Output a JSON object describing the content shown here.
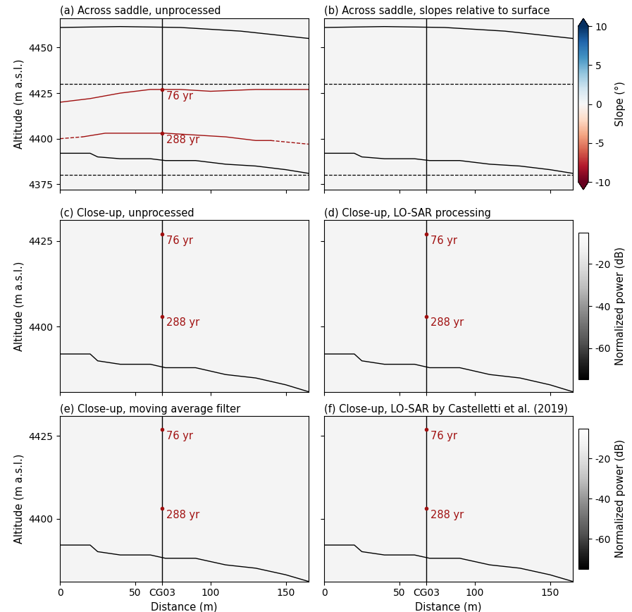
{
  "chart_data": [
    {
      "type": "radargram",
      "title": "(a) Across saddle, unprocessed",
      "y_label": "Altitude (m a.s.l.)",
      "tick_labels": "y",
      "xlim": [
        0,
        165
      ],
      "ylim": [
        4372,
        4466
      ],
      "xticks": [
        0,
        50,
        {
          "value": 68,
          "label": "CG03"
        },
        100,
        150
      ],
      "yticks": [
        4375,
        4400,
        4425,
        4450
      ],
      "vline": 68,
      "hlines": [
        4430,
        4380
      ],
      "lines": [
        {
          "x": [
            0,
            40,
            80,
            120,
            165
          ],
          "y": [
            4461,
            4461.5,
            4461,
            4459,
            4455
          ],
          "color": "#000000",
          "line_style": "solid"
        },
        {
          "x": [
            0,
            20,
            25,
            40,
            60,
            70,
            90,
            110,
            130,
            150,
            165
          ],
          "y": [
            4392,
            4392,
            4390,
            4389,
            4389,
            4388,
            4388,
            4386,
            4385,
            4383,
            4381
          ],
          "color": "#000000",
          "line_style": "solid"
        },
        {
          "x": [
            0,
            20,
            40,
            60,
            80,
            100,
            130,
            165
          ],
          "y": [
            4420,
            4422,
            4425,
            4427,
            4427,
            4426,
            4427,
            4427
          ],
          "color": "#a01010",
          "line_style": "solid"
        },
        {
          "x": [
            0,
            15
          ],
          "y": [
            4400,
            4401
          ],
          "color": "#a01010",
          "line_style": "dashed"
        },
        {
          "x": [
            15,
            30,
            50,
            70,
            90,
            110,
            130,
            140
          ],
          "y": [
            4401,
            4403,
            4403,
            4403,
            4402,
            4401,
            4399,
            4399
          ],
          "color": "#a01010",
          "line_style": "solid"
        },
        {
          "x": [
            140,
            165
          ],
          "y": [
            4399,
            4397
          ],
          "color": "#a01010",
          "line_style": "dashed"
        }
      ],
      "annotations": [
        {
          "text": "76 yr",
          "x": 68,
          "y": 4427
        },
        {
          "text": "288 yr",
          "x": 68,
          "y": 4403
        }
      ]
    },
    {
      "type": "radargram",
      "title": "(b) Across saddle, slopes relative to surface",
      "tick_labels": false,
      "xlim": [
        0,
        165
      ],
      "ylim": [
        4372,
        4466
      ],
      "xticks": [
        0,
        50,
        {
          "value": 68,
          "label": "CG03"
        },
        100,
        150
      ],
      "yticks": [
        4375,
        4400,
        4425,
        4450
      ],
      "vline": 68,
      "hlines": [
        4430,
        4380
      ],
      "lines": [
        {
          "x": [
            0,
            40,
            80,
            120,
            165
          ],
          "y": [
            4461,
            4461.5,
            4461,
            4459,
            4455
          ],
          "color": "#000000",
          "line_style": "solid"
        },
        {
          "x": [
            0,
            20,
            25,
            40,
            60,
            70,
            90,
            110,
            130,
            150,
            165
          ],
          "y": [
            4392,
            4392,
            4390,
            4389,
            4389,
            4388,
            4388,
            4386,
            4385,
            4383,
            4381
          ],
          "color": "#000000",
          "line_style": "solid"
        }
      ],
      "colorbar": {
        "label": "Slope (°)",
        "range": [
          -10,
          10
        ],
        "ticks": [
          -10,
          -5,
          0,
          5,
          10
        ],
        "color": "RdBu"
      }
    },
    {
      "type": "radargram",
      "title": "(c) Close-up, unprocessed",
      "y_label": "Altitude (m a.s.l.)",
      "tick_labels": "y",
      "xlim": [
        0,
        165
      ],
      "ylim": [
        4381,
        4431
      ],
      "xticks": [
        0,
        50,
        {
          "value": 68,
          "label": "CG03"
        },
        100,
        150
      ],
      "yticks": [
        4400,
        4425
      ],
      "vline": 68,
      "lines": [
        {
          "x": [
            0,
            20,
            25,
            40,
            60,
            70,
            90,
            110,
            130,
            150,
            165
          ],
          "y": [
            4392,
            4392,
            4390,
            4389,
            4389,
            4388,
            4388,
            4386,
            4385,
            4383,
            4381
          ],
          "color": "#000000",
          "line_style": "solid"
        }
      ],
      "annotations": [
        {
          "text": "76 yr",
          "x": 68,
          "y": 4427
        },
        {
          "text": "288 yr",
          "x": 68,
          "y": 4403
        }
      ]
    },
    {
      "type": "radargram",
      "title": "(d) Close-up, LO-SAR processing",
      "tick_labels": false,
      "xlim": [
        0,
        165
      ],
      "ylim": [
        4381,
        4431
      ],
      "xticks": [
        0,
        50,
        {
          "value": 68,
          "label": "CG03"
        },
        100,
        150
      ],
      "yticks": [
        4400,
        4425
      ],
      "vline": 68,
      "lines": [
        {
          "x": [
            0,
            20,
            25,
            40,
            60,
            70,
            90,
            110,
            130,
            150,
            165
          ],
          "y": [
            4392,
            4392,
            4390,
            4389,
            4389,
            4388,
            4388,
            4386,
            4385,
            4383,
            4381
          ],
          "color": "#000000",
          "line_style": "solid"
        }
      ],
      "annotations": [
        {
          "text": "76 yr",
          "x": 68,
          "y": 4427
        },
        {
          "text": "288 yr",
          "x": 68,
          "y": 4403
        }
      ],
      "colorbar": {
        "label": "Normalized power (dB)",
        "range": [
          -75,
          -5
        ],
        "ticks": [
          -60,
          -40,
          -20
        ],
        "color": "Greys_r"
      }
    },
    {
      "type": "radargram",
      "title": "(e) Close-up, moving average filter",
      "y_label": "Altitude (m a.s.l.)",
      "x_label": "Distance (m)",
      "xlim": [
        0,
        165
      ],
      "ylim": [
        4381,
        4431
      ],
      "xticks": [
        0,
        50,
        {
          "value": 68,
          "label": "CG03"
        },
        100,
        150
      ],
      "yticks": [
        4400,
        4425
      ],
      "vline": 68,
      "lines": [
        {
          "x": [
            0,
            20,
            25,
            40,
            60,
            70,
            90,
            110,
            130,
            150,
            165
          ],
          "y": [
            4392,
            4392,
            4390,
            4389,
            4389,
            4388,
            4388,
            4386,
            4385,
            4383,
            4381
          ],
          "color": "#000000",
          "line_style": "solid"
        }
      ],
      "annotations": [
        {
          "text": "76 yr",
          "x": 68,
          "y": 4427
        },
        {
          "text": "288 yr",
          "x": 68,
          "y": 4403
        }
      ]
    },
    {
      "type": "radargram",
      "title": "(f) Close-up, LO-SAR by Castelletti et al. (2019)",
      "x_label": "Distance (m)",
      "tick_labels": "x",
      "xlim": [
        0,
        165
      ],
      "ylim": [
        4381,
        4431
      ],
      "xticks": [
        0,
        50,
        {
          "value": 68,
          "label": "CG03"
        },
        100,
        150
      ],
      "yticks": [
        4400,
        4425
      ],
      "vline": 68,
      "lines": [
        {
          "x": [
            0,
            20,
            25,
            40,
            60,
            70,
            90,
            110,
            130,
            150,
            165
          ],
          "y": [
            4392,
            4392,
            4390,
            4389,
            4389,
            4388,
            4388,
            4386,
            4385,
            4383,
            4381
          ],
          "color": "#000000",
          "line_style": "solid"
        }
      ],
      "annotations": [
        {
          "text": "76 yr",
          "x": 68,
          "y": 4427
        },
        {
          "text": "288 yr",
          "x": 68,
          "y": 4403
        }
      ],
      "colorbar": {
        "label": "Normalized power (dB)",
        "range": [
          -75,
          -5
        ],
        "ticks": [
          -60,
          -40,
          -20
        ],
        "color": "Greys_r"
      }
    }
  ]
}
